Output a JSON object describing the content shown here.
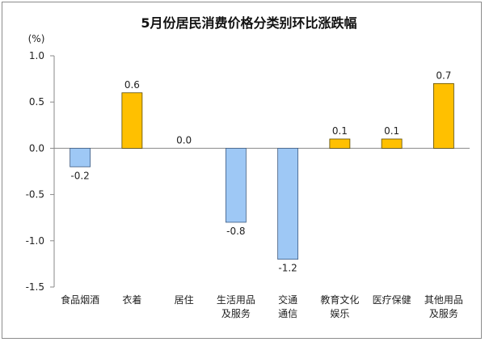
{
  "chart_data": {
    "type": "bar",
    "title": "5月份居民消费价格分类别环比涨跌幅",
    "unit": "(%)",
    "categories": [
      [
        "食品烟酒"
      ],
      [
        "衣着"
      ],
      [
        "居住"
      ],
      [
        "生活用品",
        "及服务"
      ],
      [
        "交通",
        "通信"
      ],
      [
        "教育文化",
        "娱乐"
      ],
      [
        "医疗保健"
      ],
      [
        "其他用品",
        "及服务"
      ]
    ],
    "values": [
      -0.2,
      0.6,
      0.0,
      -0.8,
      -1.2,
      0.1,
      0.1,
      0.7
    ],
    "value_labels": [
      "-0.2",
      "0.6",
      "0.0",
      "-0.8",
      "-1.2",
      "0.1",
      "0.1",
      "0.7"
    ],
    "yticks": [
      "1.0",
      "0.5",
      "0.0",
      "-0.5",
      "-1.0",
      "-1.5"
    ],
    "ylim": [
      -1.5,
      1.0
    ],
    "grid": false,
    "colors": {
      "positive_fill": "#ffc000",
      "positive_stroke": "#5a4a00",
      "negative_fill": "#9ec8f5",
      "negative_stroke": "#3c5a80"
    }
  }
}
